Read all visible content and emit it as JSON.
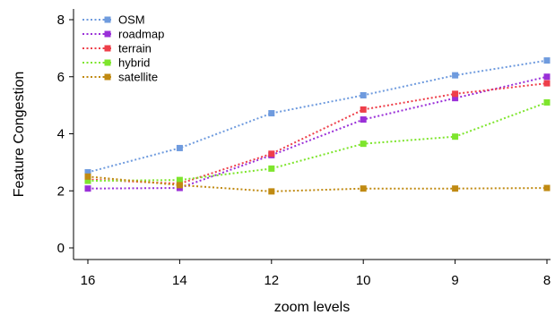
{
  "chart_data": {
    "type": "line",
    "title": "",
    "xlabel": "zoom levels",
    "ylabel": "Feature Congestion",
    "categories": [
      "16",
      "14",
      "12",
      "10",
      "9",
      "8"
    ],
    "yticks": [
      "0",
      "2",
      "4",
      "6",
      "8"
    ],
    "ylim": [
      0,
      8
    ],
    "grid": false,
    "legend_position": "top-left",
    "series": [
      {
        "name": "OSM",
        "color": "#6f9bde",
        "values": [
          2.65,
          3.5,
          4.72,
          5.35,
          6.05,
          6.57
        ]
      },
      {
        "name": "roadmap",
        "color": "#9a30d8",
        "values": [
          2.08,
          2.1,
          3.25,
          4.5,
          5.25,
          6.0
        ]
      },
      {
        "name": "terrain",
        "color": "#ee3f4a",
        "values": [
          2.4,
          2.25,
          3.3,
          4.85,
          5.4,
          5.77
        ]
      },
      {
        "name": "hybrid",
        "color": "#7ee52d",
        "values": [
          2.35,
          2.38,
          2.78,
          3.65,
          3.9,
          5.1
        ]
      },
      {
        "name": "satellite",
        "color": "#c08a12",
        "values": [
          2.5,
          2.2,
          1.98,
          2.08,
          2.08,
          2.1
        ]
      }
    ]
  }
}
